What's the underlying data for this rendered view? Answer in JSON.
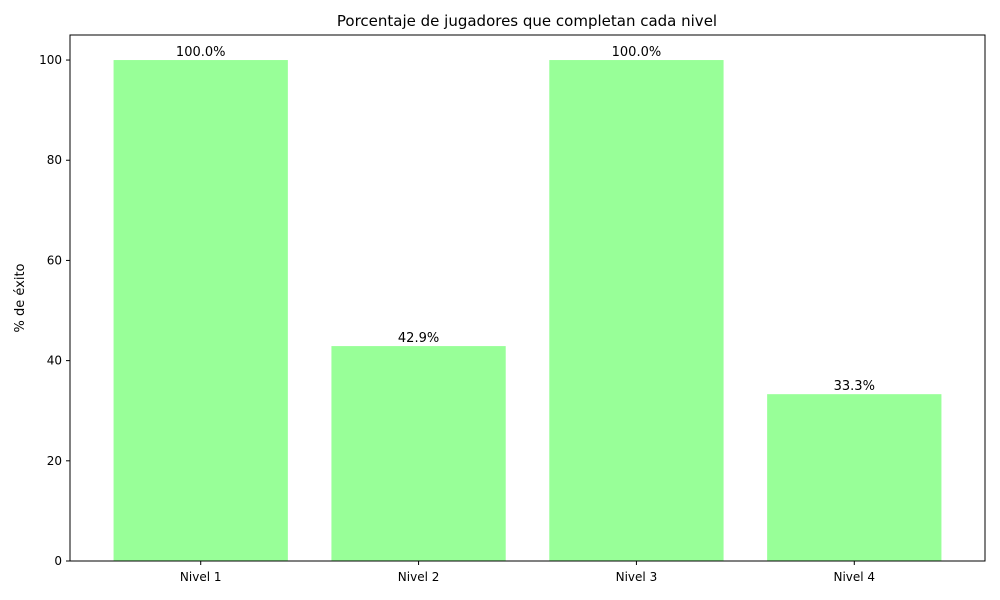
{
  "chart_data": {
    "type": "bar",
    "title": "Porcentaje de jugadores que completan cada nivel",
    "xlabel": "",
    "ylabel": "% de éxito",
    "categories": [
      "Nivel 1",
      "Nivel 2",
      "Nivel 3",
      "Nivel 4"
    ],
    "values": [
      100.0,
      42.9,
      100.0,
      33.3
    ],
    "data_labels": [
      "100.0%",
      "42.9%",
      "100.0%",
      "33.3%"
    ],
    "ylim": [
      0,
      105
    ],
    "yticks": [
      0,
      20,
      40,
      60,
      80,
      100
    ],
    "grid": false,
    "colors": {
      "bar": "#98FF98",
      "axis": "#000000"
    }
  }
}
